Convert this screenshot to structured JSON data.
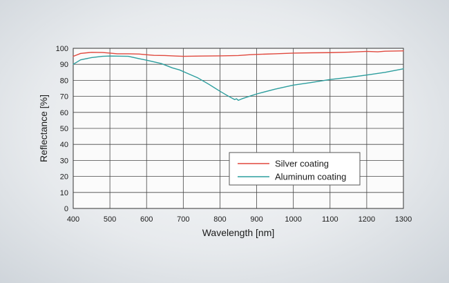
{
  "chart_data": {
    "type": "line",
    "title": "",
    "xlabel": "Wavelength [nm]",
    "ylabel": "Reflectance [%]",
    "xlim": [
      400,
      1300
    ],
    "ylim": [
      0,
      100
    ],
    "xticks": [
      400,
      500,
      600,
      700,
      800,
      900,
      1000,
      1100,
      1200,
      1300
    ],
    "yticks": [
      0,
      10,
      20,
      30,
      40,
      50,
      60,
      70,
      80,
      90,
      100
    ],
    "grid": true,
    "legend_position": "lower-right",
    "series": [
      {
        "name": "Silver coating",
        "color": "#e0473c",
        "x": [
          400,
          420,
          450,
          480,
          500,
          520,
          550,
          580,
          600,
          620,
          650,
          680,
          700,
          750,
          800,
          850,
          880,
          900,
          950,
          1000,
          1050,
          1100,
          1150,
          1190,
          1200,
          1230,
          1250,
          1300
        ],
        "y": [
          95,
          96.8,
          97.5,
          97.4,
          97,
          96.6,
          96.6,
          96.4,
          96,
          95.6,
          95.5,
          95.2,
          95,
          95.2,
          95.3,
          95.5,
          96,
          96.2,
          96.6,
          97,
          97.2,
          97.3,
          97.6,
          98,
          98.1,
          97.8,
          98.2,
          98.4
        ]
      },
      {
        "name": "Aluminum coating",
        "color": "#2a9d9d",
        "x": [
          400,
          420,
          450,
          480,
          500,
          550,
          580,
          600,
          640,
          670,
          690,
          710,
          740,
          770,
          800,
          820,
          840,
          845,
          850,
          860,
          880,
          900,
          950,
          1000,
          1050,
          1100,
          1150,
          1200,
          1250,
          1300
        ],
        "y": [
          90,
          92.8,
          94.2,
          95,
          95.2,
          95,
          93.5,
          92.6,
          90.5,
          87.8,
          86.5,
          84.5,
          81.5,
          77.5,
          73.2,
          70.5,
          68,
          68.5,
          67.5,
          68.5,
          70,
          71.5,
          74.5,
          77,
          78.7,
          80.5,
          81.8,
          83.3,
          85,
          87.2
        ]
      }
    ]
  }
}
